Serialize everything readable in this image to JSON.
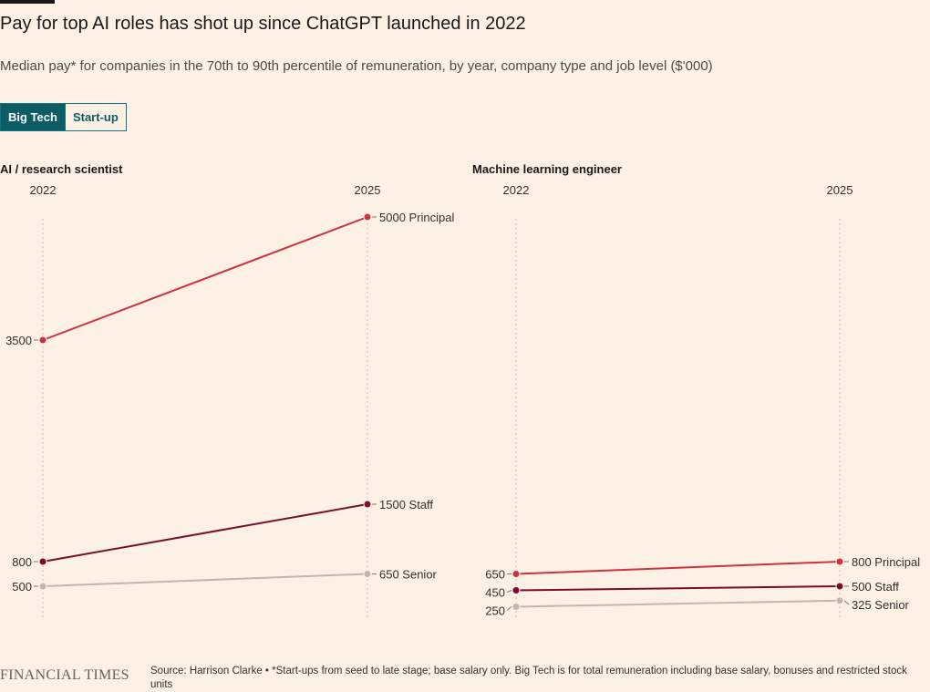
{
  "header": {
    "title": "Pay for top AI roles has shot up since ChatGPT launched in 2022",
    "subtitle": "Median pay* for companies in the 70th to 90th percentile of remuneration, by year, company type and job level ($'000)"
  },
  "toggle": {
    "options": [
      "Big Tech",
      "Start-up"
    ],
    "selected": "Big Tech"
  },
  "colors": {
    "principal": "#cc3340",
    "staff": "#7a0d2e",
    "senior": "#c4b6ad",
    "gridline": "#cdbfb4",
    "accent": "#0d5c63"
  },
  "chart_data": [
    {
      "type": "line",
      "title": "AI / research scientist",
      "x": [
        "2022",
        "2025"
      ],
      "ylim": [
        0,
        5000
      ],
      "series": [
        {
          "name": "Principal",
          "key": "principal",
          "values": [
            3500,
            5000
          ]
        },
        {
          "name": "Staff",
          "key": "staff",
          "values": [
            800,
            1500
          ]
        },
        {
          "name": "Senior",
          "key": "senior",
          "values": [
            500,
            650
          ]
        }
      ],
      "start_labels": [
        "3500",
        "800",
        "500"
      ],
      "end_labels": [
        "5000 Principal",
        "1500 Staff",
        "650 Senior"
      ]
    },
    {
      "type": "line",
      "title": "Machine learning engineer",
      "x": [
        "2022",
        "2025"
      ],
      "ylim": [
        0,
        5000
      ],
      "series": [
        {
          "name": "Principal",
          "key": "principal",
          "values": [
            650,
            800
          ]
        },
        {
          "name": "Staff",
          "key": "staff",
          "values": [
            450,
            500
          ]
        },
        {
          "name": "Senior",
          "key": "senior",
          "values": [
            250,
            325
          ]
        }
      ],
      "start_labels": [
        "650",
        "450",
        "250"
      ],
      "end_labels": [
        "800 Principal",
        "500 Staff",
        "325 Senior"
      ]
    }
  ],
  "footer": {
    "logo": "FINANCIAL TIMES",
    "source": "Source: Harrison Clarke • *Start-ups from seed to late stage; base salary only. Big Tech is for total remuneration including base salary, bonuses and restricted stock units"
  }
}
